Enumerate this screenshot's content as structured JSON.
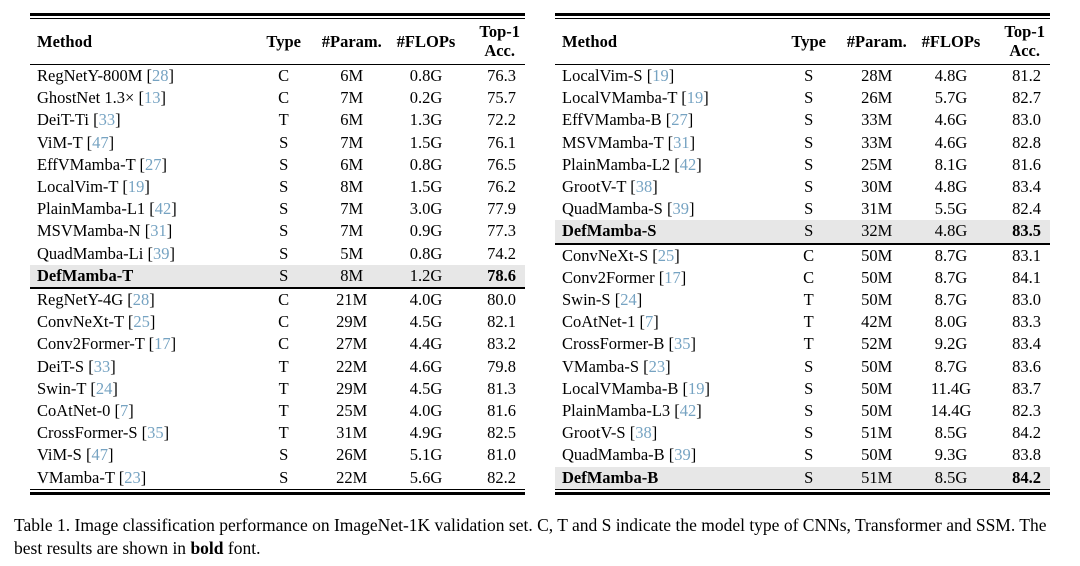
{
  "colors": {
    "citation": "#76a3c2",
    "highlight_bg": "#e7e7e7",
    "rule": "#000000",
    "background": "#ffffff"
  },
  "columns": {
    "method": "Method",
    "type": "Type",
    "params": "#Param.",
    "flops": "#FLOPs",
    "acc_line1": "Top-1",
    "acc_line2": "Acc."
  },
  "tables": [
    {
      "sections": [
        {
          "rows": [
            {
              "method": "RegNetY-800M",
              "cite": "28",
              "type": "C",
              "params": "6M",
              "flops": "0.8G",
              "acc": "76.3",
              "highlight": false
            },
            {
              "method": "GhostNet 1.3×",
              "cite": "13",
              "type": "C",
              "params": "7M",
              "flops": "0.2G",
              "acc": "75.7",
              "highlight": false
            },
            {
              "method": "DeiT-Ti",
              "cite": "33",
              "type": "T",
              "params": "6M",
              "flops": "1.3G",
              "acc": "72.2",
              "highlight": false
            },
            {
              "method": "ViM-T",
              "cite": "47",
              "type": "S",
              "params": "7M",
              "flops": "1.5G",
              "acc": "76.1",
              "highlight": false
            },
            {
              "method": "EffVMamba-T",
              "cite": "27",
              "type": "S",
              "params": "6M",
              "flops": "0.8G",
              "acc": "76.5",
              "highlight": false
            },
            {
              "method": "LocalVim-T",
              "cite": "19",
              "type": "S",
              "params": "8M",
              "flops": "1.5G",
              "acc": "76.2",
              "highlight": false
            },
            {
              "method": "PlainMamba-L1",
              "cite": "42",
              "type": "S",
              "params": "7M",
              "flops": "3.0G",
              "acc": "77.9",
              "highlight": false
            },
            {
              "method": "MSVMamba-N",
              "cite": "31",
              "type": "S",
              "params": "7M",
              "flops": "0.9G",
              "acc": "77.3",
              "highlight": false
            },
            {
              "method": "QuadMamba-Li",
              "cite": "39",
              "type": "S",
              "params": "5M",
              "flops": "0.8G",
              "acc": "74.2",
              "highlight": false
            },
            {
              "method": "DefMamba-T",
              "cite": null,
              "type": "S",
              "params": "8M",
              "flops": "1.2G",
              "acc": "78.6",
              "highlight": true
            }
          ]
        },
        {
          "rows": [
            {
              "method": "RegNetY-4G",
              "cite": "28",
              "type": "C",
              "params": "21M",
              "flops": "4.0G",
              "acc": "80.0",
              "highlight": false
            },
            {
              "method": "ConvNeXt-T",
              "cite": "25",
              "type": "C",
              "params": "29M",
              "flops": "4.5G",
              "acc": "82.1",
              "highlight": false
            },
            {
              "method": "Conv2Former-T",
              "cite": "17",
              "type": "C",
              "params": "27M",
              "flops": "4.4G",
              "acc": "83.2",
              "highlight": false
            },
            {
              "method": "DeiT-S",
              "cite": "33",
              "type": "T",
              "params": "22M",
              "flops": "4.6G",
              "acc": "79.8",
              "highlight": false
            },
            {
              "method": "Swin-T",
              "cite": "24",
              "type": "T",
              "params": "29M",
              "flops": "4.5G",
              "acc": "81.3",
              "highlight": false
            },
            {
              "method": "CoAtNet-0",
              "cite": "7",
              "type": "T",
              "params": "25M",
              "flops": "4.0G",
              "acc": "81.6",
              "highlight": false
            },
            {
              "method": "CrossFormer-S",
              "cite": "35",
              "type": "T",
              "params": "31M",
              "flops": "4.9G",
              "acc": "82.5",
              "highlight": false
            },
            {
              "method": "ViM-S",
              "cite": "47",
              "type": "S",
              "params": "26M",
              "flops": "5.1G",
              "acc": "81.0",
              "highlight": false
            },
            {
              "method": "VMamba-T",
              "cite": "23",
              "type": "S",
              "params": "22M",
              "flops": "5.6G",
              "acc": "82.2",
              "highlight": false
            }
          ]
        }
      ]
    },
    {
      "sections": [
        {
          "rows": [
            {
              "method": "LocalVim-S",
              "cite": "19",
              "type": "S",
              "params": "28M",
              "flops": "4.8G",
              "acc": "81.2",
              "highlight": false
            },
            {
              "method": "LocalVMamba-T",
              "cite": "19",
              "type": "S",
              "params": "26M",
              "flops": "5.7G",
              "acc": "82.7",
              "highlight": false
            },
            {
              "method": "EffVMamba-B",
              "cite": "27",
              "type": "S",
              "params": "33M",
              "flops": "4.6G",
              "acc": "83.0",
              "highlight": false
            },
            {
              "method": "MSVMamba-T",
              "cite": "31",
              "type": "S",
              "params": "33M",
              "flops": "4.6G",
              "acc": "82.8",
              "highlight": false
            },
            {
              "method": "PlainMamba-L2",
              "cite": "42",
              "type": "S",
              "params": "25M",
              "flops": "8.1G",
              "acc": "81.6",
              "highlight": false
            },
            {
              "method": "GrootV-T",
              "cite": "38",
              "type": "S",
              "params": "30M",
              "flops": "4.8G",
              "acc": "83.4",
              "highlight": false
            },
            {
              "method": "QuadMamba-S",
              "cite": "39",
              "type": "S",
              "params": "31M",
              "flops": "5.5G",
              "acc": "82.4",
              "highlight": false
            },
            {
              "method": "DefMamba-S",
              "cite": null,
              "type": "S",
              "params": "32M",
              "flops": "4.8G",
              "acc": "83.5",
              "highlight": true
            }
          ]
        },
        {
          "rows": [
            {
              "method": "ConvNeXt-S",
              "cite": "25",
              "type": "C",
              "params": "50M",
              "flops": "8.7G",
              "acc": "83.1",
              "highlight": false
            },
            {
              "method": "Conv2Former",
              "cite": "17",
              "type": "C",
              "params": "50M",
              "flops": "8.7G",
              "acc": "84.1",
              "highlight": false
            },
            {
              "method": "Swin-S",
              "cite": "24",
              "type": "T",
              "params": "50M",
              "flops": "8.7G",
              "acc": "83.0",
              "highlight": false
            },
            {
              "method": "CoAtNet-1",
              "cite": "7",
              "type": "T",
              "params": "42M",
              "flops": "8.0G",
              "acc": "83.3",
              "highlight": false
            },
            {
              "method": "CrossFormer-B",
              "cite": "35",
              "type": "T",
              "params": "52M",
              "flops": "9.2G",
              "acc": "83.4",
              "highlight": false
            },
            {
              "method": "VMamba-S",
              "cite": "23",
              "type": "S",
              "params": "50M",
              "flops": "8.7G",
              "acc": "83.6",
              "highlight": false
            },
            {
              "method": "LocalVMamba-B",
              "cite": "19",
              "type": "S",
              "params": "50M",
              "flops": "11.4G",
              "acc": "83.7",
              "highlight": false
            },
            {
              "method": "PlainMamba-L3",
              "cite": "42",
              "type": "S",
              "params": "50M",
              "flops": "14.4G",
              "acc": "82.3",
              "highlight": false
            },
            {
              "method": "GrootV-S",
              "cite": "38",
              "type": "S",
              "params": "51M",
              "flops": "8.5G",
              "acc": "84.2",
              "highlight": false
            },
            {
              "method": "QuadMamba-B",
              "cite": "39",
              "type": "S",
              "params": "50M",
              "flops": "9.3G",
              "acc": "83.8",
              "highlight": false
            },
            {
              "method": "DefMamba-B",
              "cite": null,
              "type": "S",
              "params": "51M",
              "flops": "8.5G",
              "acc": "84.2",
              "highlight": true
            }
          ]
        }
      ]
    }
  ],
  "caption": {
    "part1": "Table 1. Image classification performance on ImageNet-1K validation set. C, T and S indicate the model type of CNNs, Transformer and SSM. The best results are shown in ",
    "bold_word": "bold",
    "part2": " font."
  }
}
